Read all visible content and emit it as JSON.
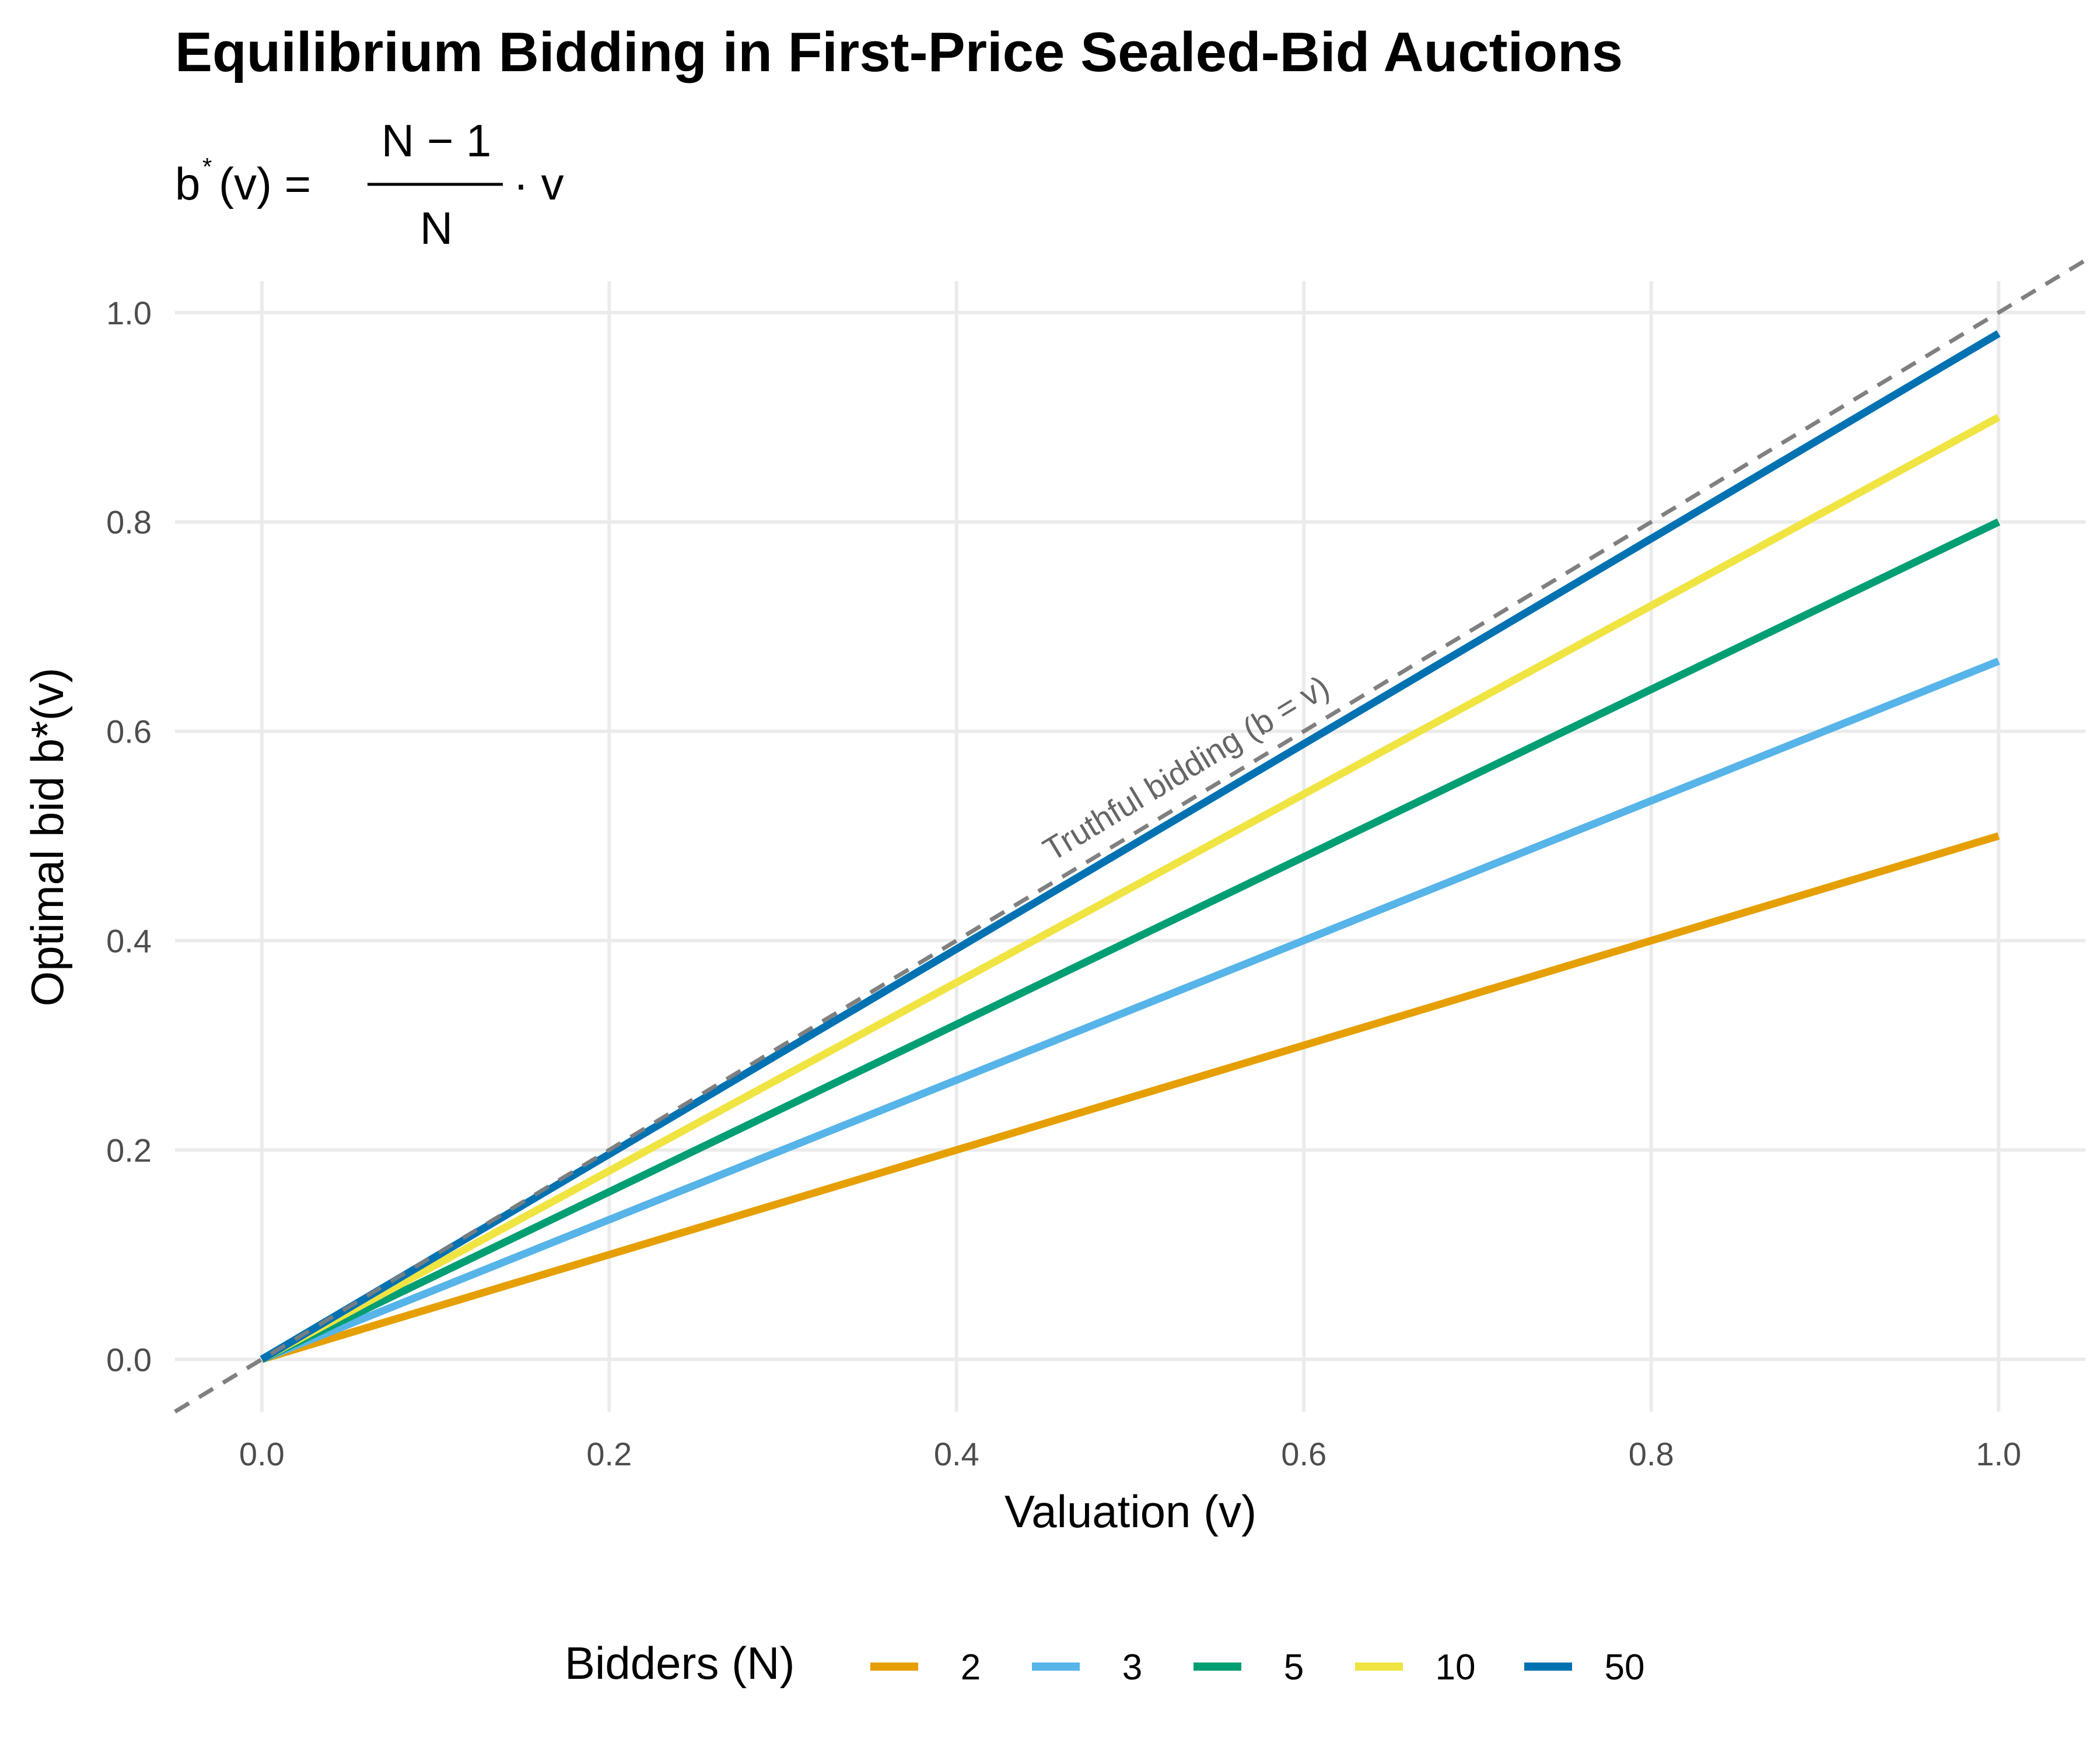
{
  "chart_data": {
    "type": "line",
    "title": "Equilibrium Bidding in First-Price Sealed-Bid Auctions",
    "subtitle": {
      "lhs_base": "b",
      "lhs_sup": "*",
      "lhs_arg": "(v) =",
      "numerator": "N − 1",
      "denominator": "N",
      "rhs": "· v"
    },
    "xlabel": "Valuation (v)",
    "ylabel": "Optimal bid b*(v)",
    "xlim": [
      -0.05,
      1.05
    ],
    "ylim": [
      -0.05,
      1.03
    ],
    "x_ticks": [
      "0.0",
      "0.2",
      "0.4",
      "0.6",
      "0.8",
      "1.0"
    ],
    "y_ticks": [
      "0.0",
      "0.2",
      "0.4",
      "0.6",
      "0.8",
      "1.0"
    ],
    "grid": true,
    "legend": {
      "title": "Bidders (N)",
      "position": "bottom"
    },
    "series": [
      {
        "name": "2",
        "x": [
          0,
          1
        ],
        "y": [
          0,
          0.5
        ],
        "color": "#E69F00"
      },
      {
        "name": "3",
        "x": [
          0,
          1
        ],
        "y": [
          0,
          0.667
        ],
        "color": "#56B4E9"
      },
      {
        "name": "5",
        "x": [
          0,
          1
        ],
        "y": [
          0,
          0.8
        ],
        "color": "#009E73"
      },
      {
        "name": "10",
        "x": [
          0,
          1
        ],
        "y": [
          0,
          0.9
        ],
        "color": "#F0E442"
      },
      {
        "name": "50",
        "x": [
          0,
          1
        ],
        "y": [
          0,
          0.98
        ],
        "color": "#0072B2"
      }
    ],
    "reference_line": {
      "label": "Truthful bidding (b = v)",
      "slope": 1,
      "intercept": 0,
      "style": "dashed",
      "color": "#808080"
    }
  }
}
